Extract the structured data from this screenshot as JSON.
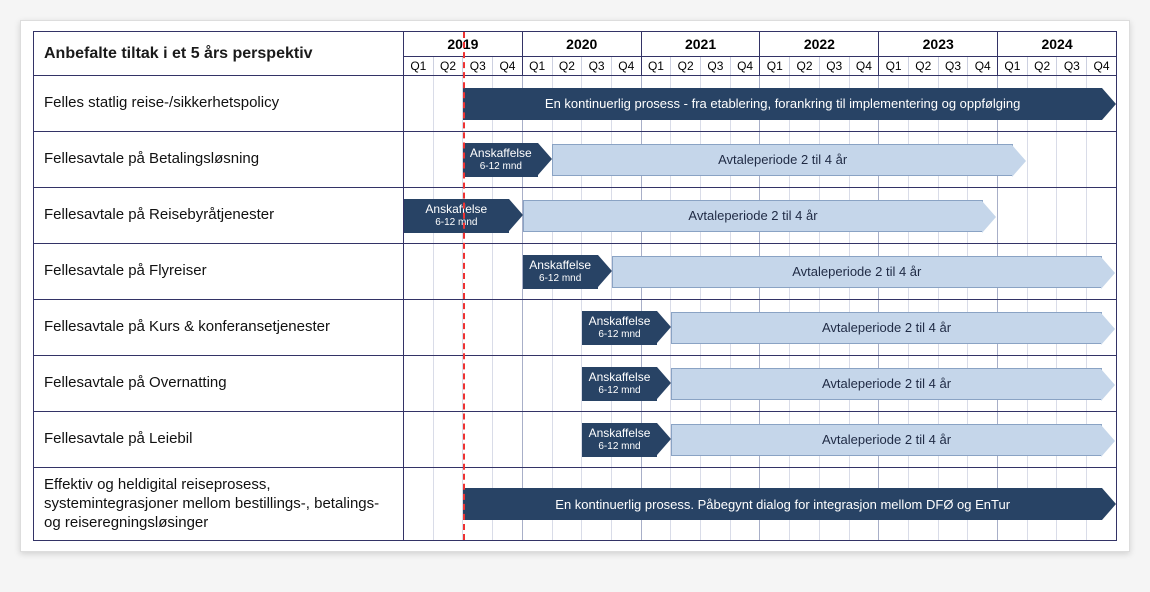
{
  "title": "Anbefalte tiltak i et 5 års perspektiv",
  "timeline": {
    "years": [
      "2019",
      "2020",
      "2021",
      "2022",
      "2023",
      "2024"
    ],
    "quarters": [
      "Q1",
      "Q2",
      "Q3",
      "Q4"
    ],
    "total_quarters": 24,
    "today_marker_quarter": 2.0,
    "colors": {
      "dark_bar": "#284365",
      "light_bar_fill": "#c5d6ea",
      "light_bar_border": "#8aa3c4",
      "light_bar_text": "#1f2a44",
      "today_line": "#e33",
      "grid_major": "#a8afc8",
      "grid_minor": "#d9dce8",
      "border": "#336"
    }
  },
  "ansk_label": "Anskaffelse",
  "ansk_sub": "6-12 mnd",
  "avtale_label": "Avtaleperiode 2 til 4 år",
  "rows": [
    {
      "label": "Felles statlig reise-/sikkerhetspolicy",
      "bars": [
        {
          "type": "dark",
          "start": 2,
          "span": 22,
          "text": "En kontinuerlig prosess - fra etablering, forankring til implementering og oppfølging",
          "arrow": true
        }
      ]
    },
    {
      "label": "Fellesavtale på Betalingsløsning",
      "bars": [
        {
          "type": "darksm",
          "start": 2,
          "span": 3,
          "arrow": true
        },
        {
          "type": "light",
          "start": 5,
          "span": 16,
          "avtale": true,
          "arrow": true
        }
      ]
    },
    {
      "label": "Fellesavtale på Reisebyråtjenester",
      "bars": [
        {
          "type": "darksm",
          "start": 0,
          "span": 4,
          "arrow": true
        },
        {
          "type": "light",
          "start": 4,
          "span": 16,
          "avtale": true,
          "arrow": true
        }
      ]
    },
    {
      "label": "Fellesavtale på Flyreiser",
      "bars": [
        {
          "type": "darksm",
          "start": 4,
          "span": 3,
          "arrow": true
        },
        {
          "type": "light",
          "start": 7,
          "span": 17,
          "avtale": true,
          "arrow": true
        }
      ]
    },
    {
      "label": "Fellesavtale på Kurs & konferansetjenester",
      "bars": [
        {
          "type": "darksm",
          "start": 6,
          "span": 3,
          "arrow": true
        },
        {
          "type": "light",
          "start": 9,
          "span": 15,
          "avtale": true,
          "arrow": true
        }
      ]
    },
    {
      "label": "Fellesavtale på Overnatting",
      "bars": [
        {
          "type": "darksm",
          "start": 6,
          "span": 3,
          "arrow": true
        },
        {
          "type": "light",
          "start": 9,
          "span": 15,
          "avtale": true,
          "arrow": true
        }
      ]
    },
    {
      "label": "Fellesavtale på Leiebil",
      "bars": [
        {
          "type": "darksm",
          "start": 6,
          "span": 3,
          "arrow": true
        },
        {
          "type": "light",
          "start": 9,
          "span": 15,
          "avtale": true,
          "arrow": true
        }
      ]
    },
    {
      "label": "Effektiv og heldigital reiseprosess, systemintegrasjoner mellom bestillings-, betalings- og reiseregningsløsinger",
      "bars": [
        {
          "type": "dark",
          "start": 2,
          "span": 22,
          "text": "En kontinuerlig prosess. Påbegynt dialog for integrasjon mellom DFØ og EnTur",
          "arrow": true
        }
      ]
    }
  ]
}
